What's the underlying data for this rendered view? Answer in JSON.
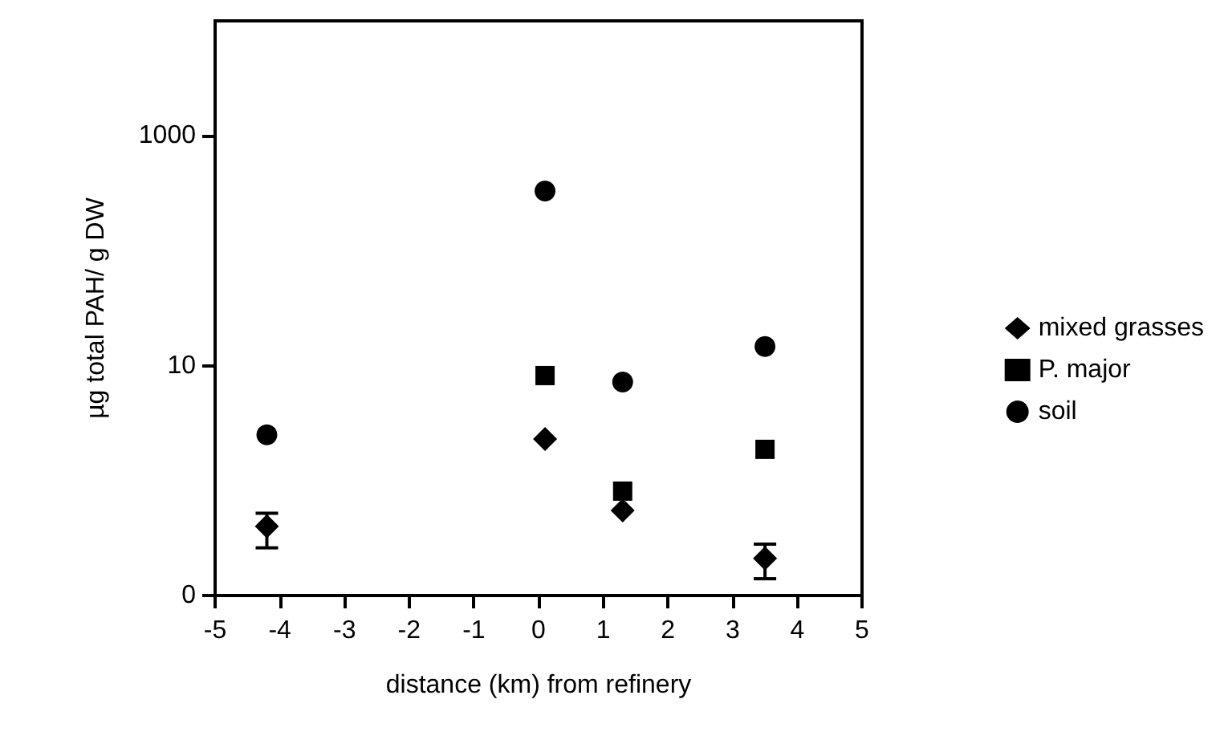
{
  "chart_data": {
    "type": "scatter",
    "xlabel": "distance (km) from refinery",
    "ylabel": "µg total PAH/ g DW",
    "log": "y",
    "grid": false,
    "legend": "right",
    "xlim": [
      -5,
      5
    ],
    "xticks": [
      -5,
      -4,
      -3,
      -2,
      -1,
      0,
      1,
      2,
      3,
      4,
      5
    ],
    "ylim": [
      0.1,
      10000
    ],
    "yticks": [
      {
        "value": 0.1,
        "label": "0"
      },
      10,
      1000
    ],
    "series": [
      {
        "name": "mixed grasses",
        "color": "#000000",
        "marker": "diamond",
        "x": [
          -4.2,
          0.1,
          1.3,
          3.5
        ],
        "values": [
          0.4,
          2.3,
          0.55,
          0.21
        ],
        "errors": [
          [
            0.26,
            0.52
          ],
          null,
          null,
          [
            0.14,
            0.28
          ]
        ]
      },
      {
        "name": "P. major",
        "color": "#000000",
        "marker": "square",
        "x": [
          0.1,
          1.3,
          3.5
        ],
        "values": [
          8.2,
          0.81,
          1.87
        ]
      },
      {
        "name": "soil",
        "color": "#000000",
        "marker": "circle",
        "x": [
          -4.2,
          0.1,
          1.3,
          3.5
        ],
        "values": [
          2.5,
          331,
          7.2,
          14.7
        ]
      }
    ]
  }
}
